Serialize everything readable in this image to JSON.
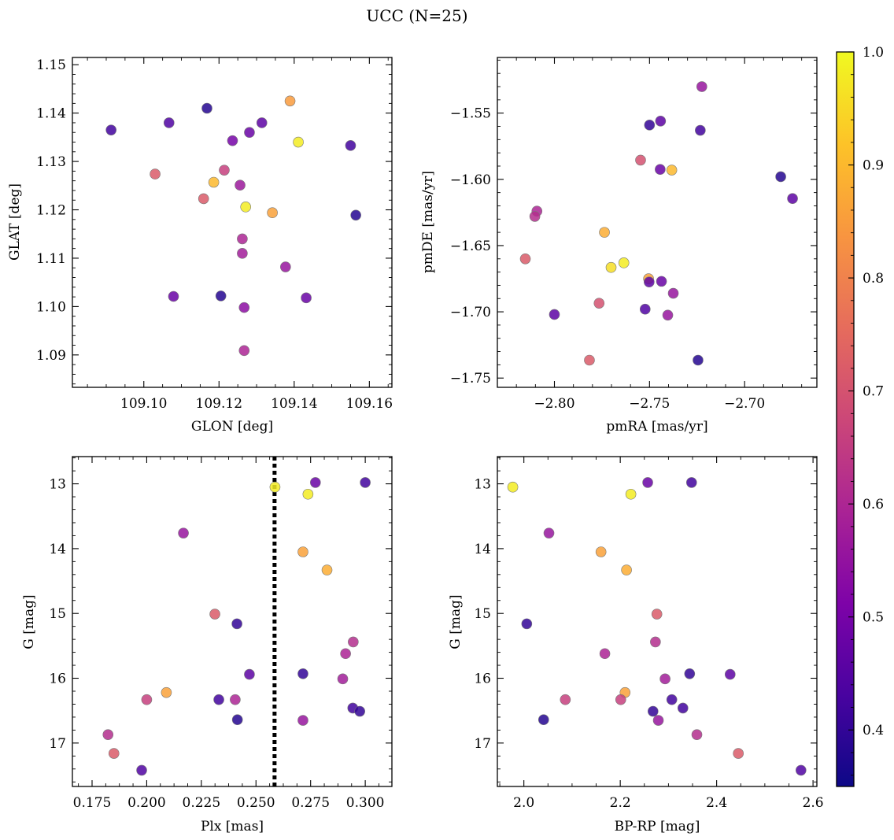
{
  "suptitle": "UCC (N=25)",
  "colorbar": {
    "range": [
      0.35,
      1.0
    ],
    "ticks": [
      "0.4",
      "0.5",
      "0.6",
      "0.7",
      "0.8",
      "0.9",
      "1.0"
    ],
    "colormap": "plasma"
  },
  "chart_data": [
    {
      "type": "scatter",
      "xlabel": "GLON [deg]",
      "ylabel": "GLAT [deg]",
      "xlim": [
        109.081,
        109.166
      ],
      "ylim": [
        1.0833,
        1.1515
      ],
      "y_inverted": false,
      "xticks": [
        "109.10",
        "109.12",
        "109.14",
        "109.16"
      ],
      "yticks": [
        "1.09",
        "1.10",
        "1.11",
        "1.12",
        "1.13",
        "1.14",
        "1.15"
      ],
      "x": [
        109.0913,
        109.1067,
        109.1168,
        109.1389,
        109.1411,
        109.155,
        109.1314,
        109.1281,
        109.1236,
        109.103,
        109.1186,
        109.1214,
        109.1256,
        109.1159,
        109.1271,
        109.1342,
        109.1564,
        109.1262,
        109.1262,
        109.1377,
        109.1079,
        109.1205,
        109.1432,
        109.1267,
        109.1267
      ],
      "y": [
        1.1365,
        1.138,
        1.141,
        1.1425,
        1.134,
        1.1333,
        1.138,
        1.136,
        1.1343,
        1.1274,
        1.1257,
        1.1282,
        1.1251,
        1.1223,
        1.1206,
        1.1194,
        1.1189,
        1.114,
        1.111,
        1.1082,
        1.1021,
        1.1022,
        1.1018,
        1.0998,
        1.0909
      ],
      "color_values": [
        0.42,
        0.44,
        0.38,
        0.85,
        0.98,
        0.42,
        0.46,
        0.48,
        0.5,
        0.72,
        0.9,
        0.66,
        0.57,
        0.72,
        0.98,
        0.86,
        0.38,
        0.6,
        0.58,
        0.56,
        0.48,
        0.38,
        0.48,
        0.54,
        0.6
      ]
    },
    {
      "type": "scatter",
      "xlabel": "pmRA [mas/yr]",
      "ylabel": "pmDE [mas/yr]",
      "xlim": [
        -2.83,
        -2.662
      ],
      "ylim": [
        -1.757,
        -1.508
      ],
      "y_inverted": false,
      "xticks": [
        "−2.80",
        "−2.75",
        "−2.70"
      ],
      "yticks": [
        "−1.75",
        "−1.70",
        "−1.65",
        "−1.60",
        "−1.55"
      ],
      "x": [
        -2.7225,
        -2.75,
        -2.7442,
        -2.7233,
        -2.7547,
        -2.7444,
        -2.7383,
        -2.681,
        -2.6748,
        -2.8092,
        -2.8103,
        -2.7737,
        -2.8153,
        -2.7702,
        -2.7635,
        -2.7505,
        -2.7502,
        -2.7437,
        -2.7375,
        -2.7765,
        -2.7523,
        -2.8,
        -2.7404,
        -2.7816,
        -2.7245
      ],
      "y": [
        -1.53,
        -1.559,
        -1.556,
        -1.563,
        -1.5855,
        -1.5925,
        -1.593,
        -1.598,
        -1.6145,
        -1.624,
        -1.628,
        -1.64,
        -1.66,
        -1.6665,
        -1.663,
        -1.675,
        -1.6775,
        -1.677,
        -1.686,
        -1.6935,
        -1.698,
        -1.702,
        -1.7025,
        -1.7365,
        -1.7365
      ],
      "color_values": [
        0.56,
        0.4,
        0.46,
        0.42,
        0.7,
        0.48,
        0.9,
        0.38,
        0.46,
        0.6,
        0.62,
        0.88,
        0.72,
        0.96,
        0.98,
        0.86,
        0.46,
        0.48,
        0.56,
        0.7,
        0.44,
        0.46,
        0.56,
        0.72,
        0.38
      ]
    },
    {
      "type": "scatter",
      "xlabel": "Plx [mas]",
      "ylabel": "G [mag]",
      "xlim": [
        0.166,
        0.3122
      ],
      "ylim": [
        12.58,
        17.67
      ],
      "y_inverted": true,
      "vline": {
        "x": 0.2585,
        "style": "dotted",
        "color": "#000000"
      },
      "xticks": [
        "0.175",
        "0.200",
        "0.225",
        "0.250",
        "0.275",
        "0.300"
      ],
      "yticks": [
        "13",
        "14",
        "15",
        "16",
        "17"
      ],
      "x": [
        0.2587,
        0.2772,
        0.3,
        0.2738,
        0.2168,
        0.2715,
        0.2825,
        0.2312,
        0.2413,
        0.2945,
        0.291,
        0.247,
        0.2715,
        0.2897,
        0.209,
        0.2,
        0.233,
        0.2405,
        0.2943,
        0.2975,
        0.2415,
        0.2715,
        0.1823,
        0.185,
        0.1977
      ],
      "y": [
        13.05,
        12.98,
        12.98,
        13.16,
        13.76,
        14.05,
        14.33,
        15.01,
        15.16,
        15.44,
        15.62,
        15.94,
        15.93,
        16.01,
        16.22,
        16.33,
        16.33,
        16.33,
        16.46,
        16.51,
        16.64,
        16.65,
        16.87,
        17.16,
        17.42
      ],
      "color_values": [
        0.98,
        0.48,
        0.42,
        0.98,
        0.56,
        0.86,
        0.88,
        0.72,
        0.4,
        0.62,
        0.6,
        0.46,
        0.4,
        0.58,
        0.86,
        0.66,
        0.42,
        0.6,
        0.42,
        0.4,
        0.38,
        0.56,
        0.62,
        0.72,
        0.44
      ]
    },
    {
      "type": "scatter",
      "xlabel": "BP-RP [mag]",
      "ylabel": "G [mag]",
      "xlim": [
        1.945,
        2.608
      ],
      "ylim": [
        12.58,
        17.67
      ],
      "y_inverted": true,
      "xticks": [
        "2.0",
        "2.2",
        "2.4",
        "2.6"
      ],
      "yticks": [
        "13",
        "14",
        "15",
        "16",
        "17"
      ],
      "x": [
        1.977,
        2.257,
        2.348,
        2.222,
        2.052,
        2.16,
        2.213,
        2.276,
        2.006,
        2.273,
        2.168,
        2.344,
        2.428,
        2.293,
        2.21,
        2.086,
        2.201,
        2.307,
        2.33,
        2.268,
        2.041,
        2.279,
        2.359,
        2.445,
        2.575
      ],
      "y": [
        13.05,
        12.98,
        12.98,
        13.16,
        13.76,
        14.05,
        14.33,
        15.01,
        15.16,
        15.44,
        15.62,
        15.93,
        15.94,
        16.01,
        16.22,
        16.33,
        16.33,
        16.33,
        16.46,
        16.51,
        16.64,
        16.65,
        16.87,
        17.16,
        17.42
      ],
      "color_values": [
        0.98,
        0.48,
        0.42,
        0.98,
        0.56,
        0.86,
        0.88,
        0.72,
        0.4,
        0.62,
        0.6,
        0.4,
        0.46,
        0.58,
        0.86,
        0.66,
        0.66,
        0.42,
        0.42,
        0.4,
        0.38,
        0.56,
        0.62,
        0.72,
        0.44
      ]
    }
  ]
}
